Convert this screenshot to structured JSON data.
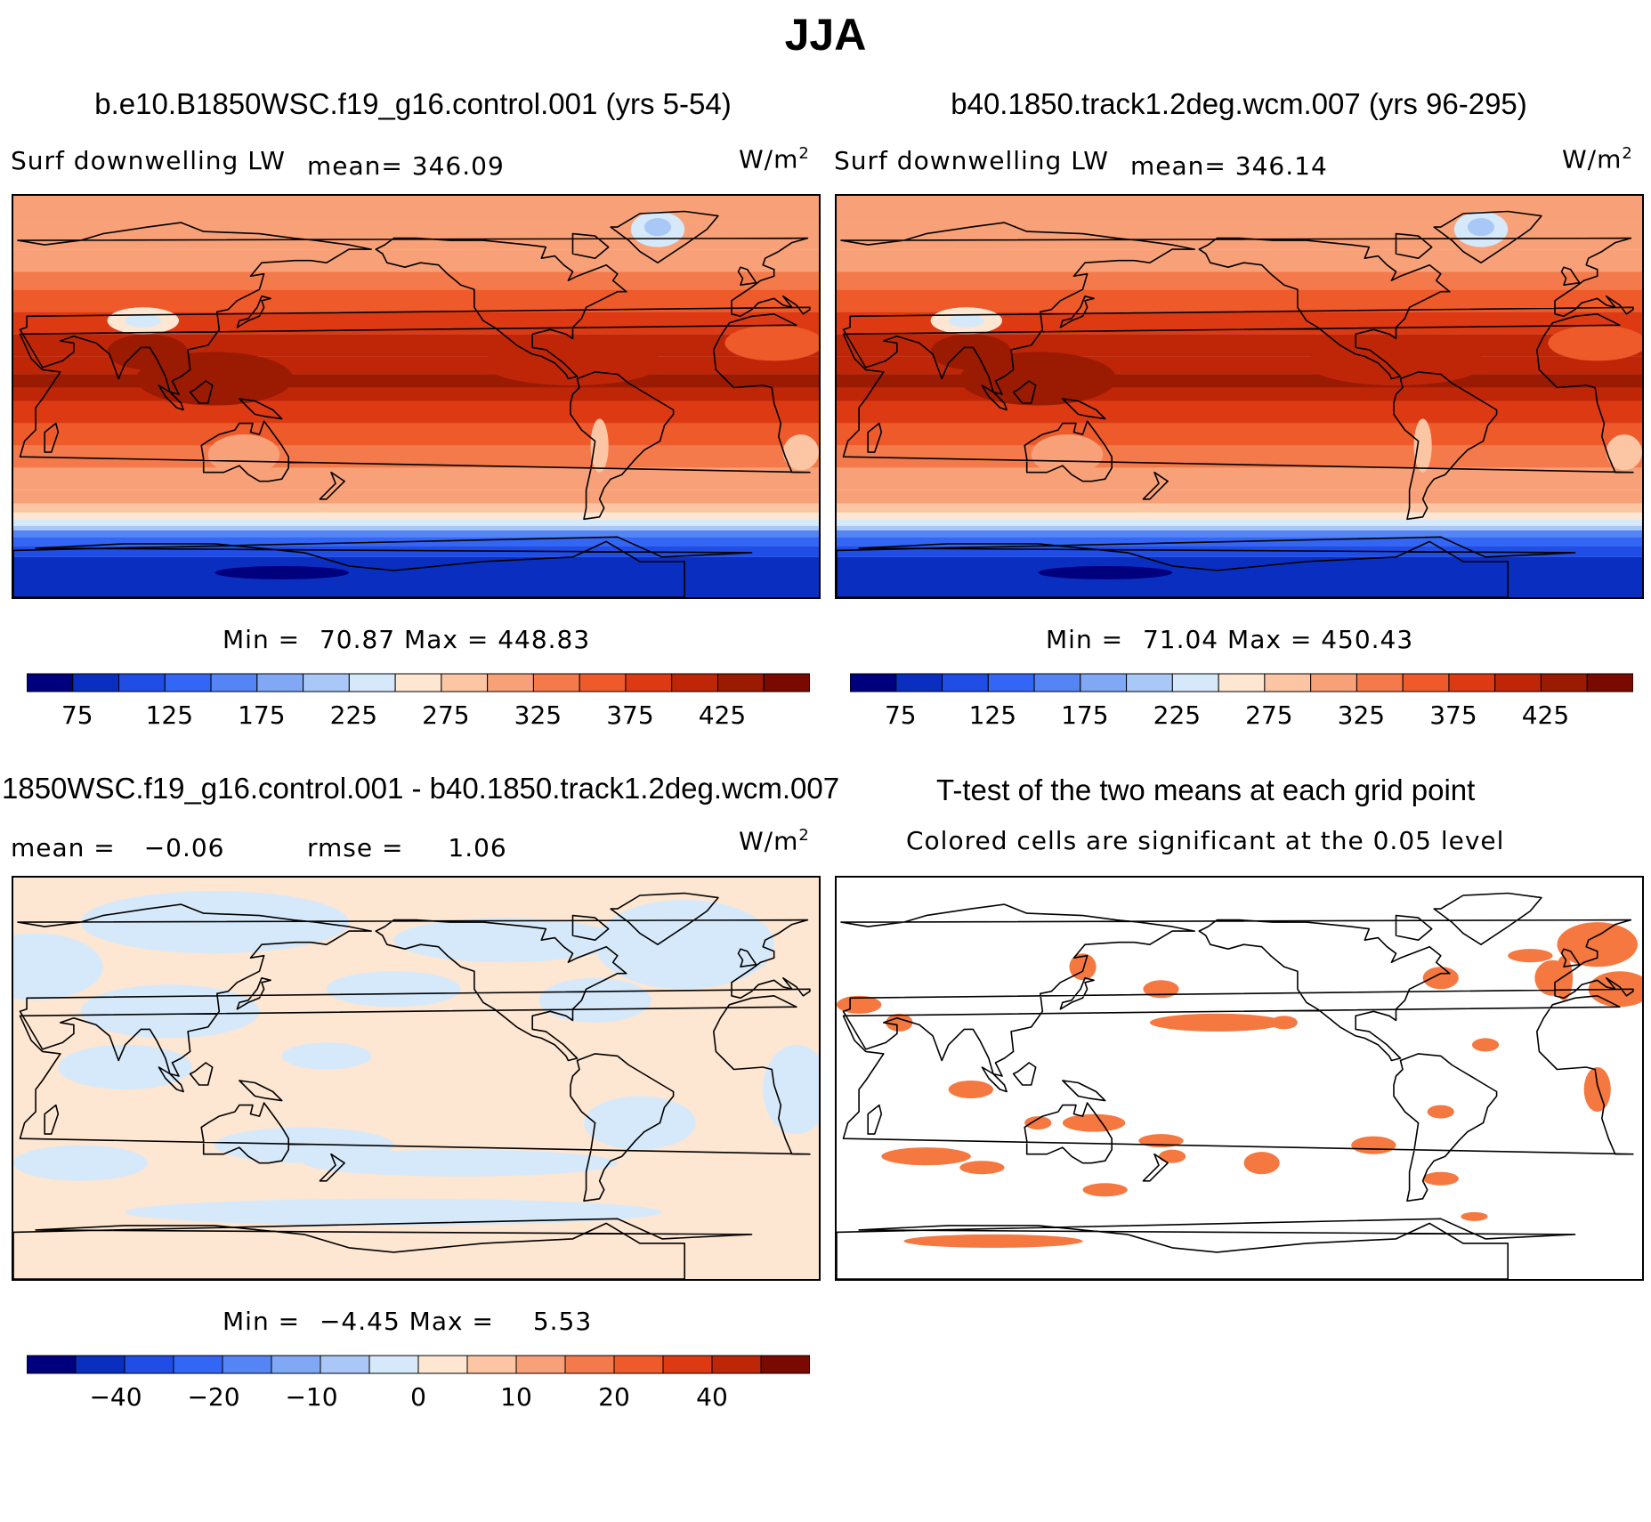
{
  "figure": {
    "title": "JJA"
  },
  "panels": [
    {
      "case_title": "b.e10.B1850WSC.f19_g16.control.001 (yrs 5-54)",
      "variable_label": "Surf downwelling LW",
      "mean_label": "mean=",
      "mean_value": "346.09",
      "units": "W/m",
      "units_exp": "2",
      "min_label": "Min =",
      "min_value": "70.87",
      "max_label": "Max =",
      "max_value": "448.83"
    },
    {
      "case_title": "b40.1850.track1.2deg.wcm.007 (yrs 96-295)",
      "variable_label": "Surf downwelling LW",
      "mean_label": "mean=",
      "mean_value": "346.14",
      "units": "W/m",
      "units_exp": "2",
      "min_label": "Min =",
      "min_value": "71.04",
      "max_label": "Max =",
      "max_value": "450.43"
    },
    {
      "case_title": "1850WSC.f19_g16.control.001 - b40.1850.track1.2deg.wcm.007",
      "mean_label": "mean =",
      "mean_value": "−0.06",
      "rmse_label": "rmse =",
      "rmse_value": "1.06",
      "units": "W/m",
      "units_exp": "2",
      "min_label": "Min =",
      "min_value": "−4.45",
      "max_label": "Max =",
      "max_value": "5.53"
    },
    {
      "case_title": "T-test of the two means at each grid point",
      "subtitle": "Colored cells are significant at the 0.05 level"
    }
  ],
  "chart_data": [
    {
      "type": "heatmap",
      "title": "b.e10.B1850WSC.f19_g16.control.001 (yrs 5-54)",
      "variable": "Surf downwelling LW",
      "units": "W/m^2",
      "mean": 346.09,
      "min": 70.87,
      "max": 448.83,
      "colorbar_ticks": [
        "75",
        "125",
        "175",
        "225",
        "275",
        "325",
        "375",
        "425"
      ],
      "colorbar_levels": [
        50,
        75,
        100,
        125,
        150,
        175,
        200,
        225,
        250,
        275,
        300,
        325,
        350,
        375,
        400,
        425,
        450
      ]
    },
    {
      "type": "heatmap",
      "title": "b40.1850.track1.2deg.wcm.007 (yrs 96-295)",
      "variable": "Surf downwelling LW",
      "units": "W/m^2",
      "mean": 346.14,
      "min": 71.04,
      "max": 450.43,
      "colorbar_ticks": [
        "75",
        "125",
        "175",
        "225",
        "275",
        "325",
        "375",
        "425"
      ],
      "colorbar_levels": [
        50,
        75,
        100,
        125,
        150,
        175,
        200,
        225,
        250,
        275,
        300,
        325,
        350,
        375,
        400,
        425,
        450
      ]
    },
    {
      "type": "heatmap",
      "title": "1850WSC.f19_g16.control.001 - b40.1850.track1.2deg.wcm.007",
      "units": "W/m^2",
      "mean": -0.06,
      "rmse": 1.06,
      "min": -4.45,
      "max": 5.53,
      "colorbar_ticks": [
        "−40",
        "−20",
        "−10",
        "0",
        "10",
        "20",
        "40"
      ],
      "colorbar_levels": [
        -50,
        -40,
        -30,
        -20,
        -15,
        -10,
        -5,
        0,
        5,
        10,
        15,
        20,
        30,
        40,
        50
      ]
    },
    {
      "type": "heatmap",
      "title": "T-test of the two means at each grid point",
      "note": "Colored cells are significant at the 0.05 level"
    }
  ],
  "colors": {
    "seq": [
      "#00007f",
      "#0a2fc0",
      "#1f4de6",
      "#3366f5",
      "#5585f5",
      "#80a8f5",
      "#a9c8f7",
      "#d6e9fa",
      "#fde6d2",
      "#fcc5a4",
      "#f8a077",
      "#f47a4b",
      "#ee5a2a",
      "#dd3a13",
      "#bf2608",
      "#9a1a02",
      "#7a0a00"
    ],
    "diff": [
      "#00007f",
      "#0a2fc0",
      "#1f4de6",
      "#3366f5",
      "#5585f5",
      "#80a8f5",
      "#a9c8f7",
      "#d6e9fa",
      "#fde6d2",
      "#fcc5a4",
      "#f8a077",
      "#f47a4b",
      "#ee5a2a",
      "#dd3a13",
      "#bf2608",
      "#7a0a00"
    ],
    "signif": "#f4783f"
  }
}
